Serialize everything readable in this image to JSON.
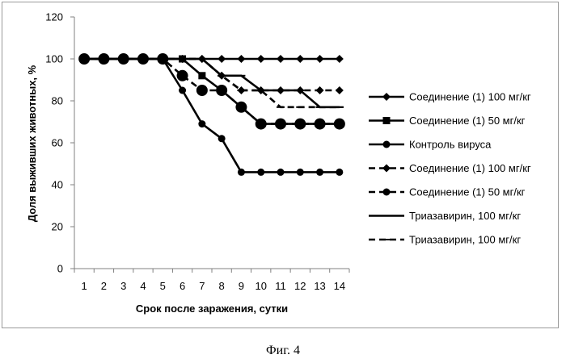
{
  "caption": "Фиг. 4",
  "chart_data": {
    "type": "line",
    "title": "",
    "xlabel": "Срок после заражения, сутки",
    "ylabel": "Доля выживших животных, %",
    "x": [
      1,
      2,
      3,
      4,
      5,
      6,
      7,
      8,
      9,
      10,
      11,
      12,
      13,
      14
    ],
    "x_ticks": [
      "1",
      "2",
      "3",
      "4",
      "5",
      "6",
      "7",
      "8",
      "9",
      "10",
      "11",
      "12",
      "13",
      "14"
    ],
    "ylim": [
      0,
      120
    ],
    "y_ticks": [
      "0",
      "20",
      "40",
      "60",
      "80",
      "100",
      "120"
    ],
    "grid": false,
    "legend_position": "right",
    "series": [
      {
        "name": "Соединение (1) 100 мг/кг",
        "values": [
          100,
          100,
          100,
          100,
          100,
          100,
          100,
          100,
          100,
          100,
          100,
          100,
          100,
          100
        ],
        "line_style": "solid",
        "marker": "diamond",
        "color": "#000000"
      },
      {
        "name": "Соединение (1) 50 мг/кг",
        "values": [
          100,
          100,
          100,
          100,
          100,
          100,
          92,
          85,
          77,
          69,
          69,
          69,
          69,
          69
        ],
        "line_style": "solid",
        "marker": "square",
        "color": "#000000"
      },
      {
        "name": "Контроль вируса",
        "values": [
          100,
          100,
          100,
          100,
          100,
          85,
          69,
          62,
          46,
          46,
          46,
          46,
          46,
          46
        ],
        "line_style": "solid",
        "marker": "circle",
        "color": "#000000"
      },
      {
        "name": "Соединение (1) 100 мг/кг",
        "values": [
          100,
          100,
          100,
          100,
          100,
          100,
          100,
          92,
          85,
          85,
          85,
          85,
          85,
          85
        ],
        "line_style": "dashed",
        "marker": "diamond",
        "color": "#000000"
      },
      {
        "name": "Соединение (1) 50 мг/кг",
        "values": [
          100,
          100,
          100,
          100,
          100,
          92,
          85,
          85,
          77,
          69,
          69,
          69,
          69,
          69
        ],
        "line_style": "dashed",
        "marker": "circle",
        "color": "#000000"
      },
      {
        "name": "Триазавирин, 100 мг/кг",
        "values": [
          100,
          100,
          100,
          100,
          100,
          100,
          100,
          92,
          92,
          85,
          85,
          85,
          77,
          77
        ],
        "line_style": "solid",
        "marker": "dash",
        "color": "#000000"
      },
      {
        "name": "Триазавирин, 100 мг/кг",
        "values": [
          100,
          100,
          100,
          100,
          100,
          100,
          100,
          92,
          85,
          85,
          77,
          77,
          77,
          77
        ],
        "line_style": "dashed",
        "marker": "dash",
        "color": "#000000"
      }
    ]
  }
}
